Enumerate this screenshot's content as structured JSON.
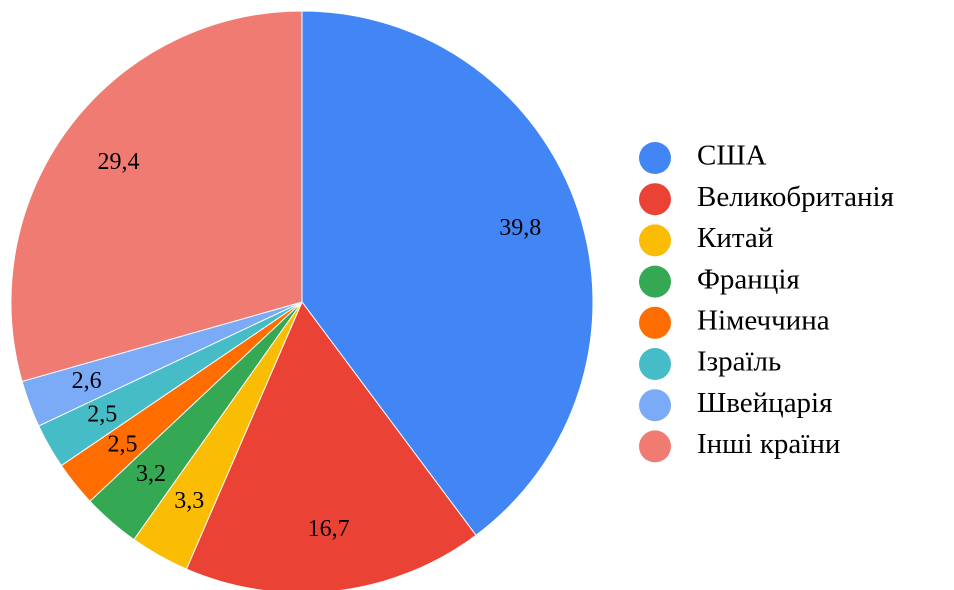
{
  "chart_data": {
    "type": "pie",
    "categories": [
      "США",
      "Великобританія",
      "Китай",
      "Франція",
      "Німеччина",
      "Ізраїль",
      "Швейцарія",
      "Інші країни"
    ],
    "values": [
      39.8,
      16.7,
      3.3,
      3.2,
      2.5,
      2.5,
      2.6,
      29.4
    ],
    "value_labels": [
      "39,8",
      "16,7",
      "3,3",
      "3,2",
      "2,5",
      "2,5",
      "2,6",
      "29,4"
    ],
    "colors": [
      "#4285f4",
      "#ea4335",
      "#fbbc04",
      "#34a853",
      "#ff6d01",
      "#46bdc6",
      "#7baaf7",
      "#f07b72"
    ],
    "legend": "right"
  }
}
